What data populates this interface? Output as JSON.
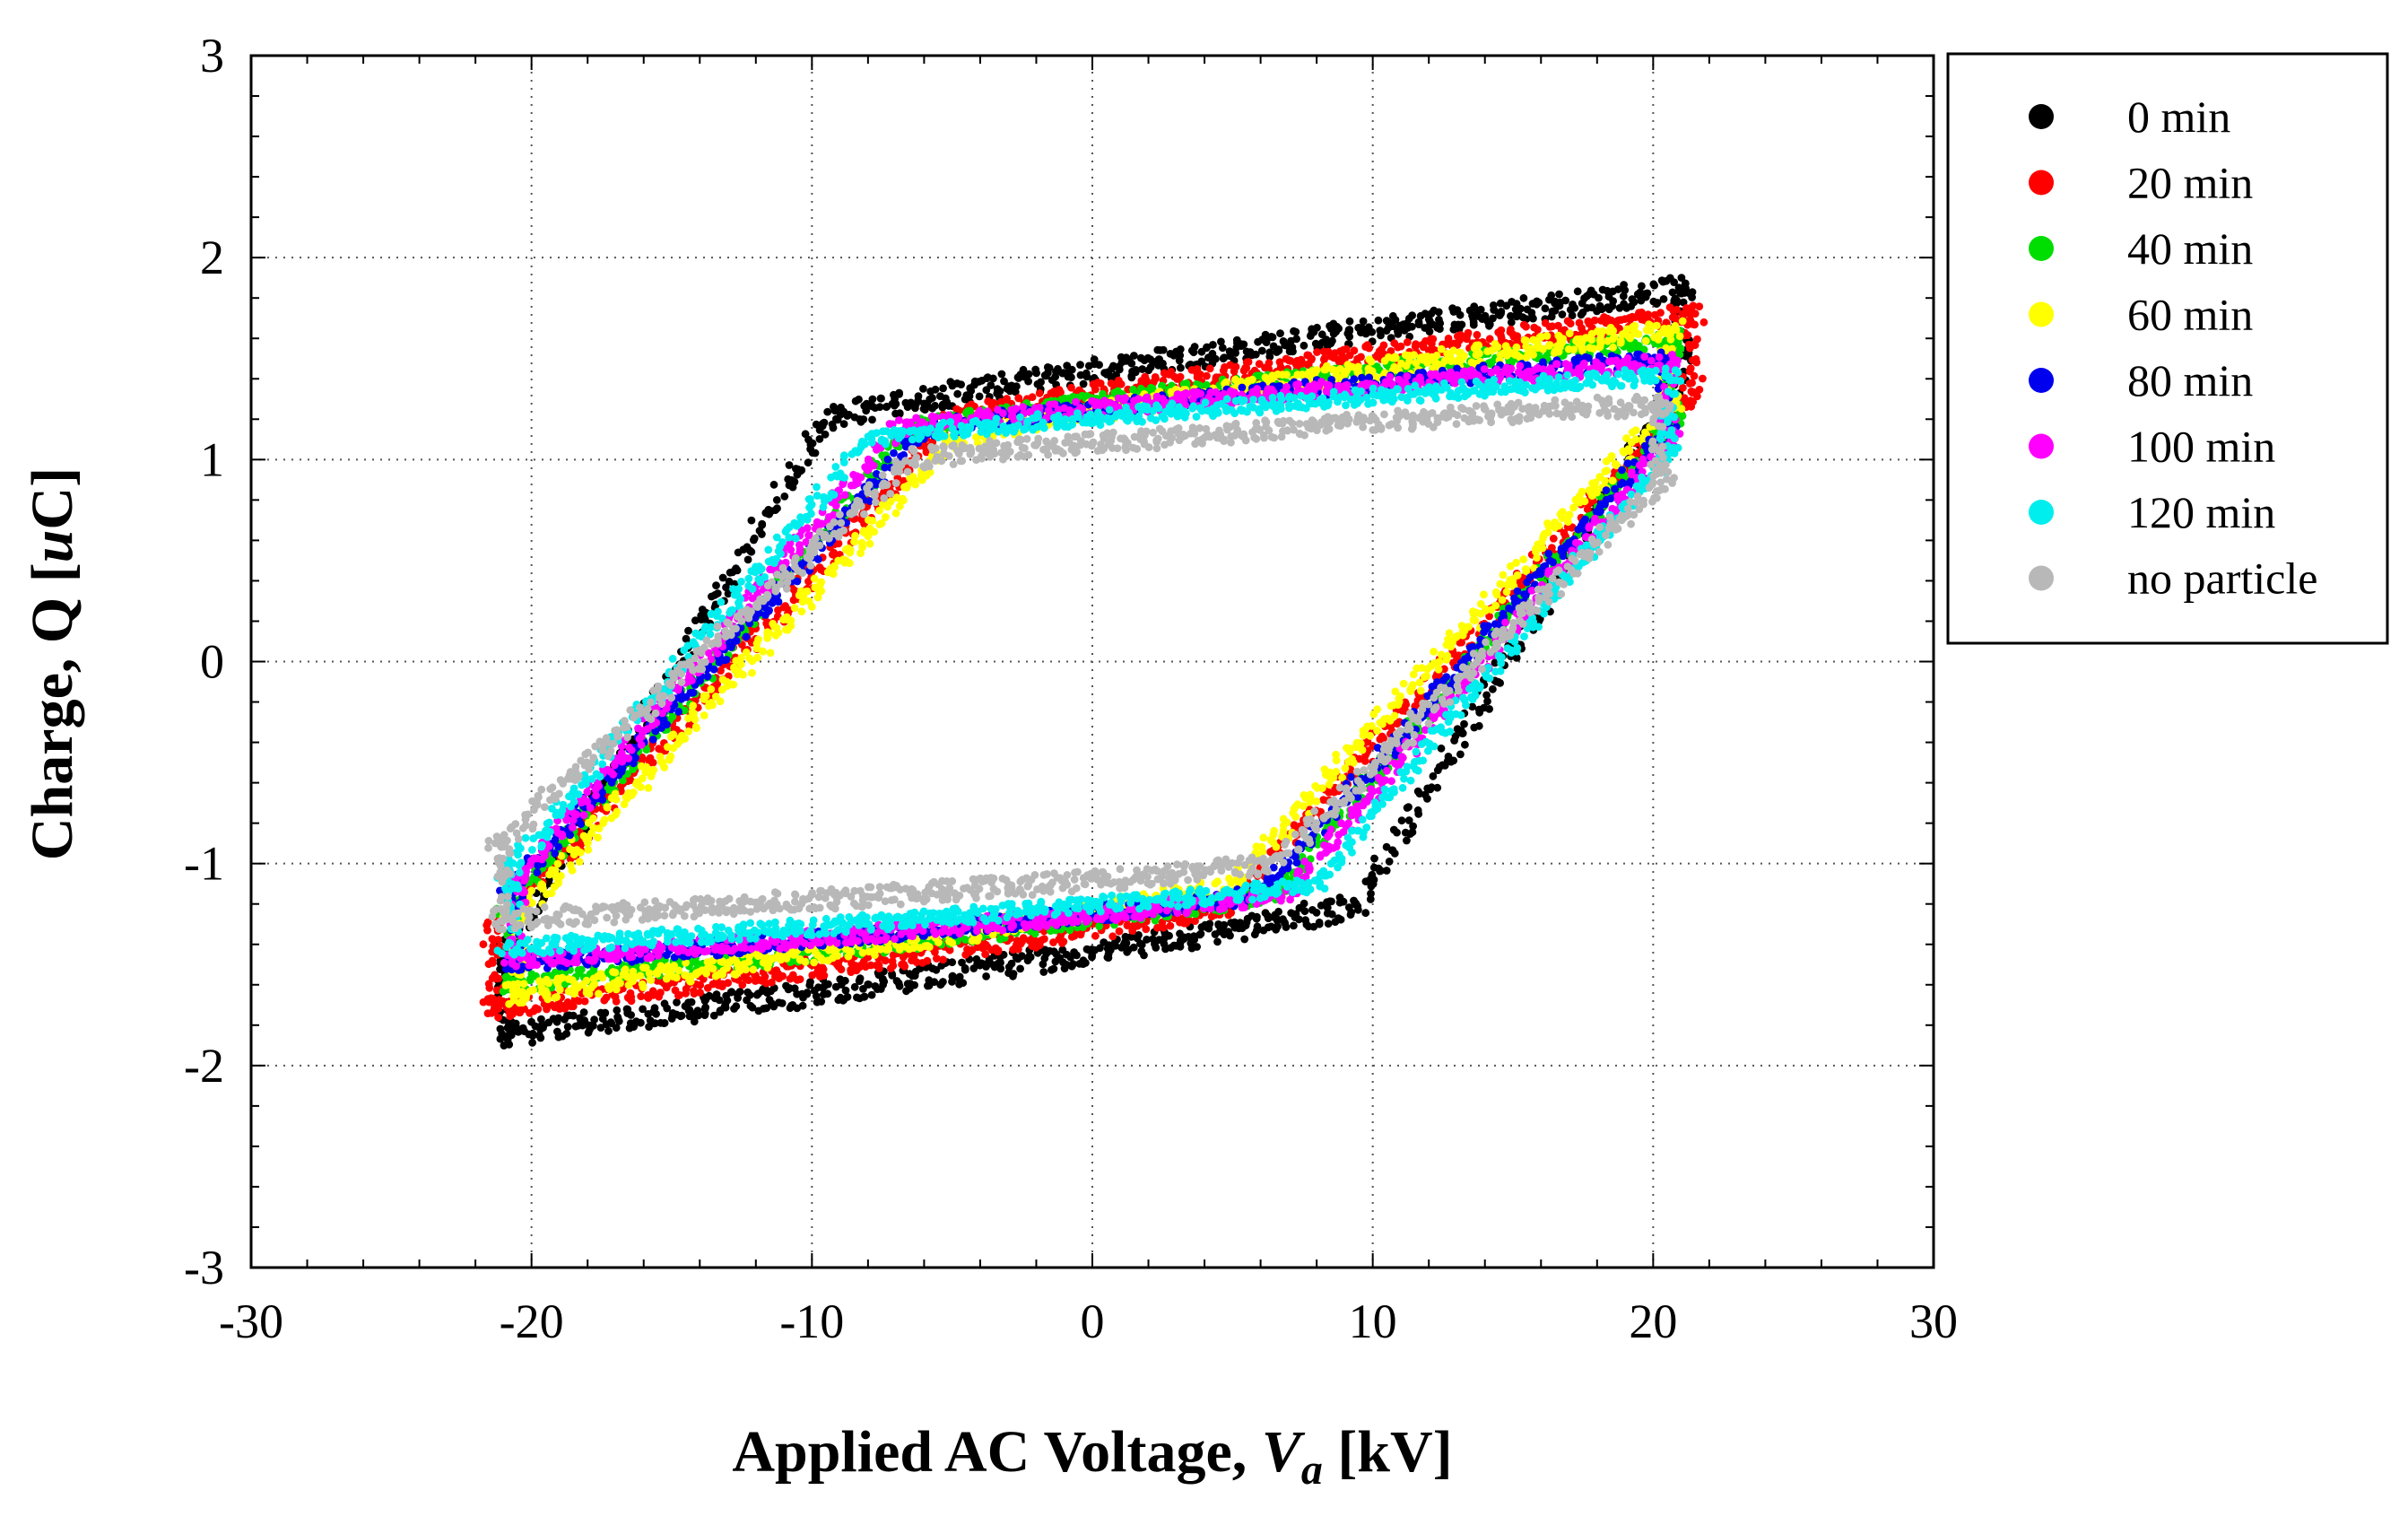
{
  "chart_data": {
    "type": "scatter",
    "title": "",
    "xlabel": {
      "main": "Applied AC Voltage, ",
      "var": "V",
      "sub": "a",
      "unit": " [kV]"
    },
    "ylabel": {
      "main": "Charge, Q [",
      "var": "u",
      "unit": "C]"
    },
    "xlim": [
      -30,
      30
    ],
    "ylim": [
      -3,
      3
    ],
    "xticks": [
      -30,
      -20,
      -10,
      0,
      10,
      20,
      30
    ],
    "yticks": [
      -3,
      -2,
      -1,
      0,
      1,
      2,
      3
    ],
    "xtick_labels": [
      "-30",
      "-20",
      "-10",
      "0",
      "10",
      "20",
      "30"
    ],
    "ytick_labels": [
      "-3",
      "-2",
      "-1",
      "0",
      "1",
      "2",
      "3"
    ],
    "grid": true,
    "legend_position": "outside-top-right",
    "series": [
      {
        "name": "0 min",
        "color": "#000000",
        "loop": {
          "vmin": -21.2,
          "vmax": 21.3,
          "qtop_left": 1.05,
          "qtop_right": 1.85,
          "qbot_left": -1.85,
          "qbot_right": -1.05,
          "knee_top": -9.5,
          "knee_bot": 9.5,
          "spread": 0.06
        }
      },
      {
        "name": "20 min",
        "color": "#ff0000",
        "loop": {
          "vmin": -21.6,
          "vmax": 21.6,
          "qtop_left": 1.05,
          "qtop_right": 1.72,
          "qbot_left": -1.72,
          "qbot_right": -1.05,
          "knee_top": -5.0,
          "knee_bot": 5.0,
          "spread": 0.05
        }
      },
      {
        "name": "40 min",
        "color": "#00dd00",
        "loop": {
          "vmin": -21.0,
          "vmax": 21.0,
          "qtop_left": 1.0,
          "qtop_right": 1.6,
          "qbot_left": -1.6,
          "qbot_right": -1.0,
          "knee_top": -6.5,
          "knee_bot": 6.5,
          "spread": 0.04
        }
      },
      {
        "name": "60 min",
        "color": "#ffff00",
        "loop": {
          "vmin": -20.8,
          "vmax": 20.8,
          "qtop_left": 0.95,
          "qtop_right": 1.65,
          "qbot_left": -1.65,
          "qbot_right": -0.95,
          "knee_top": -5.0,
          "knee_bot": 5.0,
          "spread": 0.05
        }
      },
      {
        "name": "80 min",
        "color": "#0000ee",
        "loop": {
          "vmin": -20.9,
          "vmax": 20.6,
          "qtop_left": 1.0,
          "qtop_right": 1.5,
          "qbot_left": -1.5,
          "qbot_right": -1.0,
          "knee_top": -6.0,
          "knee_bot": 6.0,
          "spread": 0.04
        }
      },
      {
        "name": "100 min",
        "color": "#ff00ff",
        "loop": {
          "vmin": -20.8,
          "vmax": 20.8,
          "qtop_left": 1.0,
          "qtop_right": 1.48,
          "qbot_left": -1.48,
          "qbot_right": -1.0,
          "knee_top": -7.0,
          "knee_bot": 7.0,
          "spread": 0.04
        }
      },
      {
        "name": "120 min",
        "color": "#00eeee",
        "loop": {
          "vmin": -21.0,
          "vmax": 20.8,
          "qtop_left": 0.95,
          "qtop_right": 1.42,
          "qbot_left": -1.42,
          "qbot_right": -0.95,
          "knee_top": -8.0,
          "knee_bot": 8.0,
          "spread": 0.04
        }
      },
      {
        "name": "no particle",
        "color": "#b8b8b8",
        "loop": {
          "vmin": -21.3,
          "vmax": 20.5,
          "qtop_left": 0.85,
          "qtop_right": 1.28,
          "qbot_left": -1.28,
          "qbot_right": -0.85,
          "knee_top": -6.5,
          "knee_bot": 6.5,
          "spread": 0.05
        }
      }
    ]
  }
}
